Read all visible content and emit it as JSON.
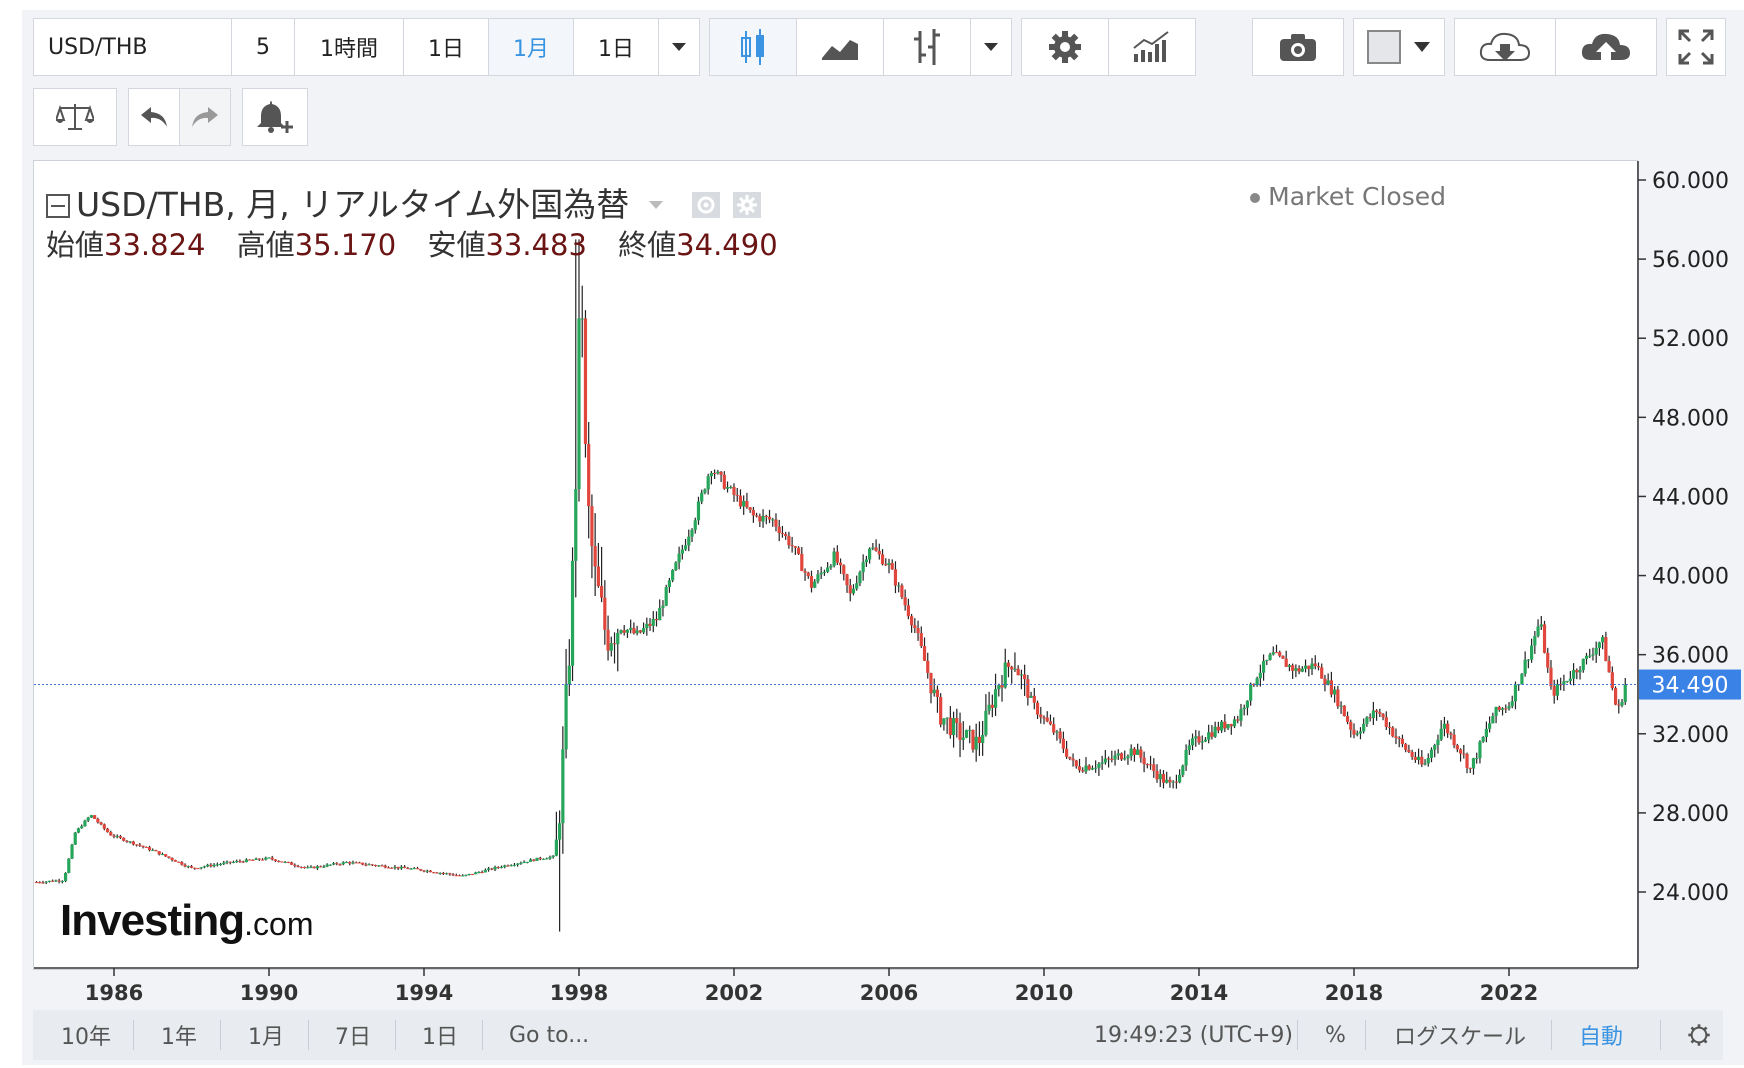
{
  "toolbar": {
    "symbol": "USD/THB",
    "intervals": [
      "5",
      "1時間",
      "1日",
      "1月",
      "1日"
    ],
    "selected_interval": "1月"
  },
  "legend": {
    "title": "USD/THB, 月, リアルタイム外国為替",
    "open_label": "始値",
    "open": "33.824",
    "high_label": "高値",
    "high": "35.170",
    "low_label": "安値",
    "low": "33.483",
    "close_label": "終値",
    "close": "34.490",
    "status": "Market Closed"
  },
  "logo": {
    "main": "Investing",
    "suffix": ".com"
  },
  "bottom_bar": {
    "ranges": [
      "10年",
      "1年",
      "1月",
      "7日",
      "1日"
    ],
    "goto": "Go to...",
    "time": "19:49:23 (UTC+9)",
    "percent": "%",
    "log_scale": "ログスケール",
    "auto": "自動"
  },
  "colors": {
    "up": "#26a65b",
    "down": "#e0463c",
    "price_line": "#3b6fd6",
    "price_label_bg": "#3b82e6",
    "accent": "#3b94e2"
  },
  "icons": [
    "chevron-down-icon",
    "candlestick-icon",
    "line-chart-icon",
    "bar-chart-icon",
    "gear-icon",
    "indicators-icon",
    "camera-icon",
    "cloud-download-icon",
    "cloud-upload-icon",
    "fullscreen-icon",
    "scale-icon",
    "undo-icon",
    "redo-icon",
    "alert-add-icon"
  ],
  "chart_data": {
    "type": "candlestick",
    "title": "USD/THB, 月, リアルタイム外国為替",
    "x_ticks": [
      "1986",
      "1990",
      "1994",
      "1998",
      "2002",
      "2006",
      "2010",
      "2014",
      "2018",
      "2022"
    ],
    "y_ticks": [
      "60.000",
      "56.000",
      "52.000",
      "48.000",
      "44.000",
      "40.000",
      "36.000",
      "32.000",
      "28.000",
      "24.000"
    ],
    "ylim": [
      20,
      60
    ],
    "xlim": [
      1984.0,
      2025.5
    ],
    "last_price": 34.49,
    "last_price_label": "34.490",
    "keypoints": [
      [
        1984.0,
        24.5
      ],
      [
        1984.7,
        24.6
      ],
      [
        1985.0,
        27.0
      ],
      [
        1985.4,
        27.9
      ],
      [
        1985.9,
        26.9
      ],
      [
        1987.0,
        26.1
      ],
      [
        1988.0,
        25.2
      ],
      [
        1989.0,
        25.5
      ],
      [
        1990.0,
        25.7
      ],
      [
        1991.0,
        25.2
      ],
      [
        1992.0,
        25.5
      ],
      [
        1993.0,
        25.3
      ],
      [
        1994.0,
        25.1
      ],
      [
        1995.0,
        24.8
      ],
      [
        1996.0,
        25.3
      ],
      [
        1997.0,
        25.7
      ],
      [
        1997.4,
        25.8
      ],
      [
        1997.6,
        31.0
      ],
      [
        1997.8,
        38.0
      ],
      [
        1997.95,
        47.0
      ],
      [
        1998.05,
        53.0
      ],
      [
        1998.2,
        44.0
      ],
      [
        1998.4,
        40.0
      ],
      [
        1998.7,
        37.0
      ],
      [
        1999.0,
        37.5
      ],
      [
        1999.5,
        37.0
      ],
      [
        2000.0,
        37.8
      ],
      [
        2000.5,
        40.5
      ],
      [
        2001.0,
        43.0
      ],
      [
        2001.4,
        45.5
      ],
      [
        2001.8,
        44.5
      ],
      [
        2002.5,
        43.0
      ],
      [
        2003.0,
        42.8
      ],
      [
        2003.5,
        41.5
      ],
      [
        2004.0,
        39.5
      ],
      [
        2004.6,
        41.0
      ],
      [
        2005.0,
        39.0
      ],
      [
        2005.5,
        41.5
      ],
      [
        2006.0,
        40.5
      ],
      [
        2006.7,
        37.2
      ],
      [
        2007.3,
        33.0
      ],
      [
        2007.8,
        32.0
      ],
      [
        2008.3,
        31.5
      ],
      [
        2008.8,
        34.5
      ],
      [
        2009.2,
        35.8
      ],
      [
        2009.7,
        33.5
      ],
      [
        2010.3,
        32.0
      ],
      [
        2010.8,
        30.3
      ],
      [
        2011.5,
        30.5
      ],
      [
        2012.3,
        31.2
      ],
      [
        2013.0,
        29.8
      ],
      [
        2013.3,
        29.3
      ],
      [
        2013.8,
        31.5
      ],
      [
        2014.5,
        32.3
      ],
      [
        2015.0,
        32.8
      ],
      [
        2015.5,
        35.0
      ],
      [
        2015.9,
        36.0
      ],
      [
        2016.5,
        35.2
      ],
      [
        2017.0,
        35.5
      ],
      [
        2017.5,
        34.0
      ],
      [
        2018.0,
        32.0
      ],
      [
        2018.6,
        33.2
      ],
      [
        2019.2,
        31.5
      ],
      [
        2019.8,
        30.3
      ],
      [
        2020.3,
        32.5
      ],
      [
        2020.8,
        31.0
      ],
      [
        2021.0,
        30.2
      ],
      [
        2021.6,
        33.0
      ],
      [
        2022.0,
        33.5
      ],
      [
        2022.5,
        36.0
      ],
      [
        2022.8,
        37.7
      ],
      [
        2023.1,
        34.0
      ],
      [
        2023.6,
        35.0
      ],
      [
        2024.0,
        35.8
      ],
      [
        2024.4,
        36.8
      ],
      [
        2024.7,
        34.0
      ],
      [
        2024.8,
        33.0
      ],
      [
        2025.0,
        34.49
      ]
    ]
  }
}
